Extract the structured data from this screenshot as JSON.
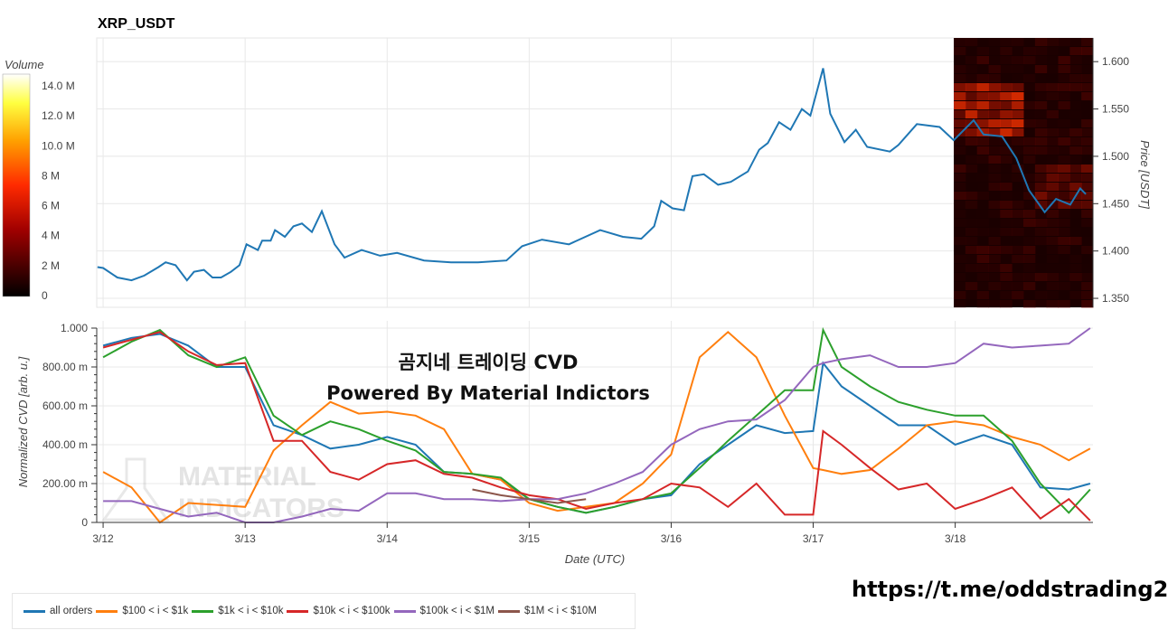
{
  "chart_data": [
    {
      "type": "line",
      "title": "XRP_USDT",
      "ylabel": "Price [USDT]",
      "ylim": [
        1.3405,
        1.625
      ],
      "yticks": [
        "1.350",
        "1.400",
        "1.450",
        "1.500",
        "1.550",
        "1.600"
      ],
      "ytick_values": [
        1.35,
        1.4,
        1.45,
        1.5,
        1.55,
        1.6
      ],
      "x_unit": "days since 3/12 00:00 UTC",
      "series": [
        {
          "name": "price",
          "color": "#1f77b4",
          "x": [
            -0.04,
            0,
            0.1,
            0.2,
            0.29,
            0.39,
            0.44,
            0.51,
            0.59,
            0.64,
            0.71,
            0.77,
            0.83,
            0.9,
            0.96,
            1.01,
            1.09,
            1.12,
            1.18,
            1.21,
            1.28,
            1.34,
            1.4,
            1.47,
            1.54,
            1.63,
            1.7,
            1.82,
            1.95,
            2.07,
            2.26,
            2.45,
            2.64,
            2.84,
            2.95,
            3.09,
            3.28,
            3.5,
            3.66,
            3.79,
            3.88,
            3.93,
            4.01,
            4.09,
            4.15,
            4.23,
            4.33,
            4.42,
            4.54,
            4.62,
            4.68,
            4.76,
            4.84,
            4.92,
            4.98,
            5.07,
            5.12,
            5.22,
            5.3,
            5.38,
            5.54,
            5.6,
            5.73,
            5.89,
            5.99,
            6.13,
            6.2,
            6.33,
            6.43,
            6.52,
            6.63,
            6.71,
            6.81,
            6.88,
            6.92
          ],
          "y": [
            1.383,
            1.382,
            1.372,
            1.369,
            1.374,
            1.383,
            1.388,
            1.385,
            1.369,
            1.378,
            1.38,
            1.372,
            1.372,
            1.378,
            1.385,
            1.407,
            1.401,
            1.411,
            1.411,
            1.422,
            1.415,
            1.426,
            1.429,
            1.42,
            1.442,
            1.407,
            1.393,
            1.401,
            1.395,
            1.398,
            1.39,
            1.388,
            1.388,
            1.39,
            1.405,
            1.412,
            1.407,
            1.422,
            1.415,
            1.413,
            1.426,
            1.453,
            1.445,
            1.443,
            1.479,
            1.481,
            1.47,
            1.473,
            1.484,
            1.507,
            1.514,
            1.536,
            1.528,
            1.55,
            1.543,
            1.593,
            1.545,
            1.515,
            1.528,
            1.51,
            1.505,
            1.512,
            1.534,
            1.531,
            1.517,
            1.538,
            1.523,
            1.521,
            1.498,
            1.464,
            1.441,
            1.455,
            1.449,
            1.466,
            1.46
          ]
        }
      ],
      "heatmap": {
        "label": "Volume",
        "colorbar_ticks": [
          "0",
          "2 M",
          "4 M",
          "6 M",
          "8 M",
          "10.0 M",
          "12.0 M",
          "14.0 M"
        ],
        "colorbar_values": [
          0,
          2,
          4,
          6,
          8,
          10,
          12,
          14
        ],
        "x_start": 5.99
      }
    },
    {
      "type": "line",
      "title": "곰지네 트레이딩 CVD",
      "subtitle": "Powered By Material Indictors",
      "xlabel": "Date (UTC)",
      "ylabel": "Normalized CVD [arb. u.]",
      "ylim": [
        0,
        1
      ],
      "yticks": [
        "0",
        "200.00 m",
        "400.00 m",
        "600.00 m",
        "800.00 m",
        "1.000"
      ],
      "ytick_values": [
        0,
        0.2,
        0.4,
        0.6,
        0.8,
        1.0
      ],
      "xticks": [
        "3/12",
        "3/13",
        "3/14",
        "3/15",
        "3/16",
        "3/17",
        "3/18"
      ],
      "xtick_values": [
        0,
        1,
        2,
        3,
        4,
        5,
        6
      ],
      "xlim": [
        -0.045,
        6.97
      ],
      "x": [
        0,
        0.2,
        0.4,
        0.6,
        0.8,
        1.0,
        1.2,
        1.4,
        1.6,
        1.8,
        2.0,
        2.2,
        2.4,
        2.6,
        2.8,
        3.0,
        3.2,
        3.4,
        3.6,
        3.8,
        4.0,
        4.2,
        4.4,
        4.6,
        4.8,
        5.0,
        5.07,
        5.2,
        5.4,
        5.6,
        5.8,
        6.0,
        6.2,
        6.4,
        6.6,
        6.8,
        6.95
      ],
      "series": [
        {
          "name": "all orders",
          "color": "#1f77b4",
          "values": [
            0.91,
            0.95,
            0.97,
            0.91,
            0.8,
            0.8,
            0.5,
            0.45,
            0.38,
            0.4,
            0.44,
            0.4,
            0.26,
            0.25,
            0.22,
            0.12,
            0.08,
            0.05,
            0.08,
            0.12,
            0.14,
            0.3,
            0.4,
            0.5,
            0.46,
            0.47,
            0.82,
            0.7,
            0.6,
            0.5,
            0.5,
            0.4,
            0.45,
            0.4,
            0.18,
            0.17,
            0.2
          ]
        },
        {
          "name": "$100 < i < $1k",
          "color": "#ff7f0e",
          "values": [
            0.26,
            0.18,
            0.0,
            0.1,
            0.09,
            0.08,
            0.37,
            0.5,
            0.62,
            0.56,
            0.57,
            0.55,
            0.48,
            0.25,
            0.22,
            0.1,
            0.06,
            0.08,
            0.1,
            0.2,
            0.35,
            0.85,
            0.98,
            0.85,
            0.55,
            0.28,
            0.27,
            0.25,
            0.27,
            0.38,
            0.5,
            0.52,
            0.5,
            0.44,
            0.4,
            0.32,
            0.38
          ]
        },
        {
          "name": "$1k < i < $10k",
          "color": "#2ca02c",
          "values": [
            0.85,
            0.93,
            0.99,
            0.86,
            0.8,
            0.85,
            0.55,
            0.45,
            0.52,
            0.48,
            0.42,
            0.37,
            0.26,
            0.25,
            0.23,
            0.12,
            0.08,
            0.05,
            0.08,
            0.12,
            0.15,
            0.28,
            0.42,
            0.55,
            0.68,
            0.68,
            0.99,
            0.8,
            0.7,
            0.62,
            0.58,
            0.55,
            0.55,
            0.42,
            0.2,
            0.05,
            0.17
          ]
        },
        {
          "name": "$10k < i < $100k",
          "color": "#d62728",
          "values": [
            0.9,
            0.94,
            0.98,
            0.88,
            0.81,
            0.82,
            0.42,
            0.42,
            0.26,
            0.22,
            0.3,
            0.32,
            0.25,
            0.23,
            0.18,
            0.14,
            0.12,
            0.07,
            0.1,
            0.12,
            0.2,
            0.18,
            0.08,
            0.2,
            0.04,
            0.04,
            0.47,
            0.4,
            0.28,
            0.17,
            0.2,
            0.07,
            0.12,
            0.18,
            0.02,
            0.12,
            0.01
          ]
        },
        {
          "name": "$100k < i < $1M",
          "color": "#9467bd",
          "values": [
            0.11,
            0.11,
            0.07,
            0.03,
            0.05,
            0.0,
            0.0,
            0.03,
            0.07,
            0.06,
            0.15,
            0.15,
            0.12,
            0.12,
            0.11,
            0.12,
            0.12,
            0.15,
            0.2,
            0.26,
            0.4,
            0.48,
            0.52,
            0.53,
            0.63,
            0.8,
            0.82,
            0.84,
            0.86,
            0.8,
            0.8,
            0.82,
            0.92,
            0.9,
            0.91,
            0.92,
            1.0
          ]
        },
        {
          "name": "$1M < i < $10M",
          "color": "#8c564b",
          "values": [
            null,
            null,
            null,
            null,
            null,
            null,
            null,
            null,
            null,
            null,
            null,
            null,
            null,
            0.17,
            0.14,
            0.12,
            0.1,
            0.12,
            null,
            null,
            null,
            null,
            null,
            null,
            null,
            null,
            null,
            null,
            null,
            null,
            null,
            null,
            null,
            null,
            null,
            null,
            null
          ]
        }
      ]
    }
  ],
  "footer": {
    "link": "https://t.me/oddstrading2"
  }
}
